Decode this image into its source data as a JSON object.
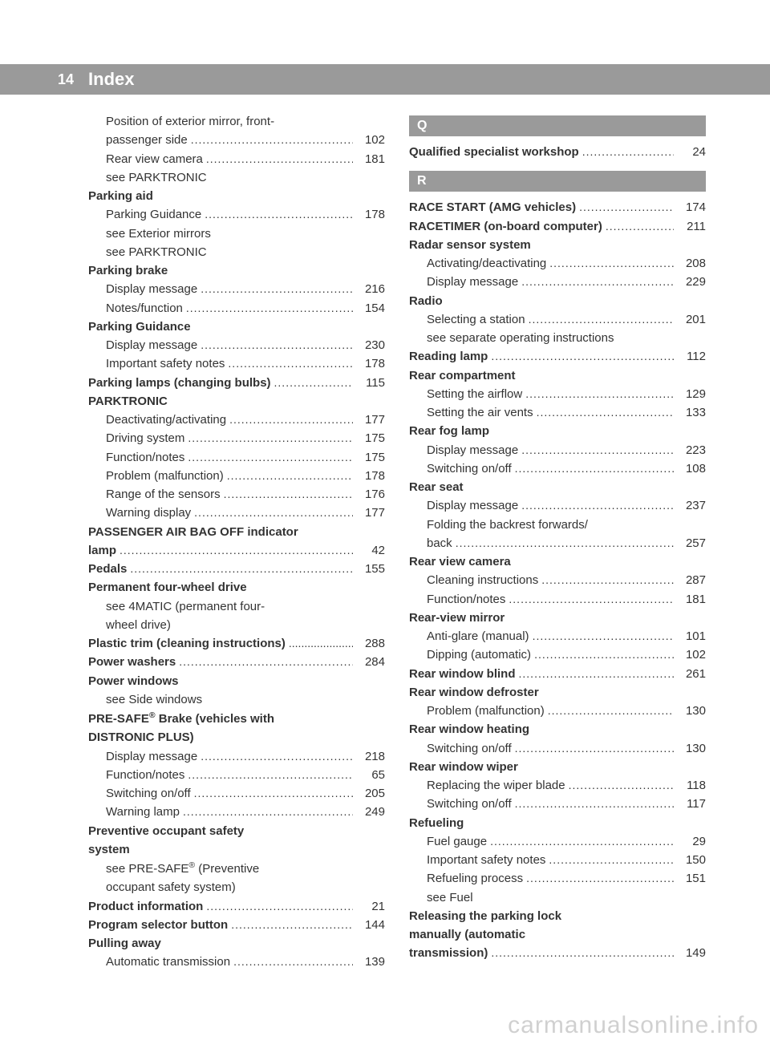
{
  "header": {
    "page_number": "14",
    "title": "Index"
  },
  "left": [
    {
      "sub": true,
      "bold": false,
      "text": "Position of exterior mirror, front-",
      "page": null,
      "continued": true
    },
    {
      "sub": true,
      "bold": false,
      "text": "passenger side",
      "page": "102"
    },
    {
      "sub": true,
      "bold": false,
      "text": "Rear view camera",
      "page": "181"
    },
    {
      "sub": true,
      "bold": false,
      "text": "see PARKTRONIC",
      "page": null
    },
    {
      "sub": false,
      "bold": true,
      "text": "Parking aid",
      "page": null
    },
    {
      "sub": true,
      "bold": false,
      "text": "Parking Guidance",
      "page": "178"
    },
    {
      "sub": true,
      "bold": false,
      "text": "see Exterior mirrors",
      "page": null
    },
    {
      "sub": true,
      "bold": false,
      "text": "see PARKTRONIC",
      "page": null
    },
    {
      "sub": false,
      "bold": true,
      "text": "Parking brake",
      "page": null
    },
    {
      "sub": true,
      "bold": false,
      "text": "Display message",
      "page": "216"
    },
    {
      "sub": true,
      "bold": false,
      "text": "Notes/function",
      "page": "154"
    },
    {
      "sub": false,
      "bold": true,
      "text": "Parking Guidance",
      "page": null
    },
    {
      "sub": true,
      "bold": false,
      "text": "Display message",
      "page": "230"
    },
    {
      "sub": true,
      "bold": false,
      "text": "Important safety notes",
      "page": "178"
    },
    {
      "sub": false,
      "bold": true,
      "text": "Parking lamps (changing bulbs)",
      "page": "115"
    },
    {
      "sub": false,
      "bold": true,
      "text": "PARKTRONIC",
      "page": null
    },
    {
      "sub": true,
      "bold": false,
      "text": "Deactivating/activating",
      "page": "177"
    },
    {
      "sub": true,
      "bold": false,
      "text": "Driving system",
      "page": "175"
    },
    {
      "sub": true,
      "bold": false,
      "text": "Function/notes",
      "page": "175"
    },
    {
      "sub": true,
      "bold": false,
      "text": "Problem (malfunction)",
      "page": "178"
    },
    {
      "sub": true,
      "bold": false,
      "text": "Range of the sensors",
      "page": "176"
    },
    {
      "sub": true,
      "bold": false,
      "text": "Warning display",
      "page": "177"
    },
    {
      "sub": false,
      "bold": true,
      "text": "PASSENGER AIR BAG OFF indicator",
      "page": null,
      "continued": true
    },
    {
      "sub": false,
      "bold": true,
      "text": "lamp",
      "page": "42"
    },
    {
      "sub": false,
      "bold": true,
      "text": "Pedals",
      "page": "155"
    },
    {
      "sub": false,
      "bold": true,
      "text": "Permanent four-wheel drive",
      "page": null
    },
    {
      "sub": true,
      "bold": false,
      "text": "see 4MATIC (permanent four-",
      "page": null,
      "continued": true
    },
    {
      "sub": true,
      "bold": false,
      "text": "wheel drive)",
      "page": null
    },
    {
      "sub": false,
      "bold": true,
      "text": "Plastic trim (cleaning instructions)",
      "page": "288",
      "tightdots": true
    },
    {
      "sub": false,
      "bold": true,
      "text": "Power washers",
      "page": "284"
    },
    {
      "sub": false,
      "bold": true,
      "text": "Power windows",
      "page": null
    },
    {
      "sub": true,
      "bold": false,
      "text": "see Side windows",
      "page": null
    },
    {
      "sub": false,
      "bold": true,
      "html": "PRE-SAFE<sup>®</sup> Brake (vehicles with",
      "page": null,
      "continued": true
    },
    {
      "sub": false,
      "bold": true,
      "text": "DISTRONIC PLUS)",
      "page": null
    },
    {
      "sub": true,
      "bold": false,
      "text": "Display message",
      "page": "218"
    },
    {
      "sub": true,
      "bold": false,
      "text": "Function/notes",
      "page": "65"
    },
    {
      "sub": true,
      "bold": false,
      "text": "Switching on/off",
      "page": "205"
    },
    {
      "sub": true,
      "bold": false,
      "text": "Warning lamp",
      "page": "249"
    },
    {
      "sub": false,
      "bold": true,
      "text": "Preventive occupant safety",
      "page": null,
      "continued": true
    },
    {
      "sub": false,
      "bold": true,
      "text": "system",
      "page": null
    },
    {
      "sub": true,
      "bold": false,
      "html": "see PRE-SAFE<sup>®</sup> (Preventive",
      "page": null,
      "continued": true
    },
    {
      "sub": true,
      "bold": false,
      "text": "occupant safety system)",
      "page": null
    },
    {
      "sub": false,
      "bold": true,
      "text": "Product information",
      "page": "21"
    },
    {
      "sub": false,
      "bold": true,
      "text": "Program selector button",
      "page": "144"
    },
    {
      "sub": false,
      "bold": true,
      "text": "Pulling away",
      "page": null
    },
    {
      "sub": true,
      "bold": false,
      "text": "Automatic transmission",
      "page": "139"
    }
  ],
  "right": [
    {
      "section": "Q"
    },
    {
      "sub": false,
      "bold": true,
      "text": "Qualified specialist workshop",
      "page": "24"
    },
    {
      "spacer": true
    },
    {
      "section": "R"
    },
    {
      "sub": false,
      "bold": true,
      "text": "RACE START (AMG vehicles)",
      "page": "174"
    },
    {
      "sub": false,
      "bold": true,
      "text": "RACETIMER (on-board computer)",
      "page": "211"
    },
    {
      "sub": false,
      "bold": true,
      "text": "Radar sensor system",
      "page": null
    },
    {
      "sub": true,
      "bold": false,
      "text": "Activating/deactivating",
      "page": "208"
    },
    {
      "sub": true,
      "bold": false,
      "text": "Display message",
      "page": "229"
    },
    {
      "sub": false,
      "bold": true,
      "text": "Radio",
      "page": null
    },
    {
      "sub": true,
      "bold": false,
      "text": "Selecting a station",
      "page": "201"
    },
    {
      "sub": true,
      "bold": false,
      "text": "see separate operating instructions",
      "page": null
    },
    {
      "sub": false,
      "bold": true,
      "text": "Reading lamp",
      "page": "112"
    },
    {
      "sub": false,
      "bold": true,
      "text": "Rear compartment",
      "page": null
    },
    {
      "sub": true,
      "bold": false,
      "text": "Setting the airflow",
      "page": "129"
    },
    {
      "sub": true,
      "bold": false,
      "text": "Setting the air vents",
      "page": "133"
    },
    {
      "sub": false,
      "bold": true,
      "text": "Rear fog lamp",
      "page": null
    },
    {
      "sub": true,
      "bold": false,
      "text": "Display message",
      "page": "223"
    },
    {
      "sub": true,
      "bold": false,
      "text": "Switching on/off",
      "page": "108"
    },
    {
      "sub": false,
      "bold": true,
      "text": "Rear seat",
      "page": null
    },
    {
      "sub": true,
      "bold": false,
      "text": "Display message",
      "page": "237"
    },
    {
      "sub": true,
      "bold": false,
      "text": "Folding the backrest forwards/",
      "page": null,
      "continued": true
    },
    {
      "sub": true,
      "bold": false,
      "text": "back",
      "page": "257"
    },
    {
      "sub": false,
      "bold": true,
      "text": "Rear view camera",
      "page": null
    },
    {
      "sub": true,
      "bold": false,
      "text": "Cleaning instructions",
      "page": "287"
    },
    {
      "sub": true,
      "bold": false,
      "text": "Function/notes",
      "page": "181"
    },
    {
      "sub": false,
      "bold": true,
      "text": "Rear-view mirror",
      "page": null
    },
    {
      "sub": true,
      "bold": false,
      "text": "Anti-glare (manual)",
      "page": "101"
    },
    {
      "sub": true,
      "bold": false,
      "text": "Dipping (automatic)",
      "page": "102"
    },
    {
      "sub": false,
      "bold": true,
      "text": "Rear window blind",
      "page": "261"
    },
    {
      "sub": false,
      "bold": true,
      "text": "Rear window defroster",
      "page": null
    },
    {
      "sub": true,
      "bold": false,
      "text": "Problem (malfunction)",
      "page": "130"
    },
    {
      "sub": false,
      "bold": true,
      "text": "Rear window heating",
      "page": null
    },
    {
      "sub": true,
      "bold": false,
      "text": "Switching on/off",
      "page": "130"
    },
    {
      "sub": false,
      "bold": true,
      "text": "Rear window wiper",
      "page": null
    },
    {
      "sub": true,
      "bold": false,
      "text": "Replacing the wiper blade",
      "page": "118"
    },
    {
      "sub": true,
      "bold": false,
      "text": "Switching on/off",
      "page": "117"
    },
    {
      "sub": false,
      "bold": true,
      "text": "Refueling",
      "page": null
    },
    {
      "sub": true,
      "bold": false,
      "text": "Fuel gauge",
      "page": "29"
    },
    {
      "sub": true,
      "bold": false,
      "text": "Important safety notes",
      "page": "150"
    },
    {
      "sub": true,
      "bold": false,
      "text": "Refueling process",
      "page": "151"
    },
    {
      "sub": true,
      "bold": false,
      "text": "see Fuel",
      "page": null
    },
    {
      "sub": false,
      "bold": true,
      "text": "Releasing the parking lock",
      "page": null,
      "continued": true
    },
    {
      "sub": false,
      "bold": true,
      "text": "manually (automatic",
      "page": null,
      "continued": true
    },
    {
      "sub": false,
      "bold": true,
      "text": "transmission)",
      "page": "149"
    }
  ],
  "watermark": "carmanualsonline.info"
}
